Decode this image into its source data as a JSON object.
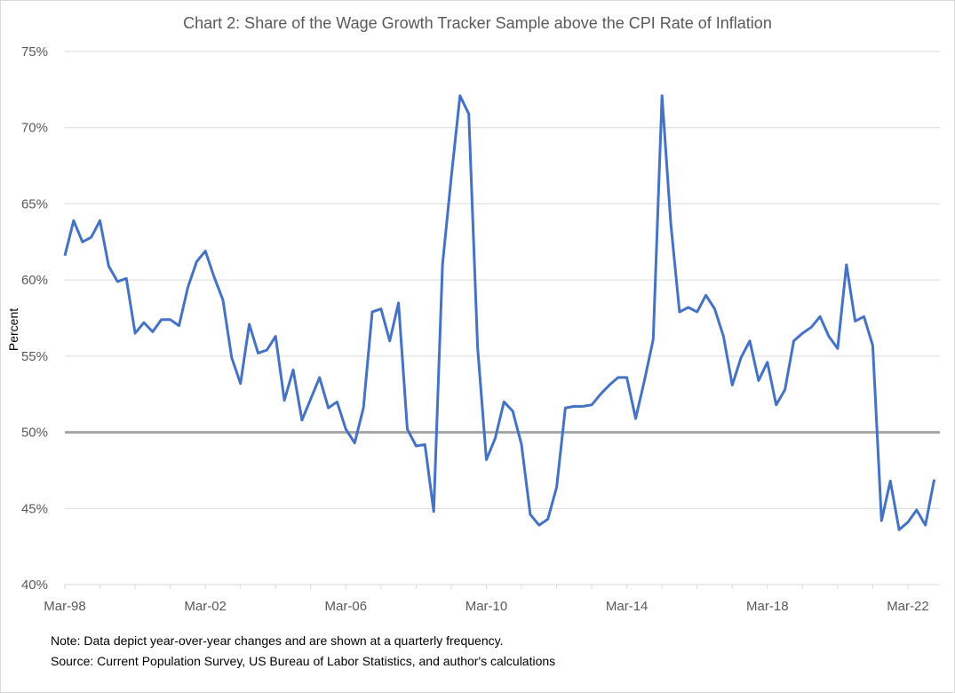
{
  "chart_data": {
    "type": "line",
    "title": "Chart 2: Share of the Wage Growth Tracker Sample above the CPI  Rate of Inflation",
    "xlabel": "",
    "ylabel": "Percent",
    "ylim": [
      40,
      75
    ],
    "y_ticks": [
      "40%",
      "45%",
      "50%",
      "55%",
      "60%",
      "65%",
      "70%",
      "75%"
    ],
    "x_ticks": [
      "Mar-98",
      "Mar-02",
      "Mar-06",
      "Mar-10",
      "Mar-14",
      "Mar-18",
      "Mar-22"
    ],
    "grid": "horizontal",
    "reference_line": {
      "value": 50,
      "color": "#A5A5A5"
    },
    "series_color": "#4472C4",
    "x": [
      "Mar-98",
      "Jun-98",
      "Sep-98",
      "Dec-98",
      "Mar-99",
      "Jun-99",
      "Sep-99",
      "Dec-99",
      "Mar-00",
      "Jun-00",
      "Sep-00",
      "Dec-00",
      "Mar-01",
      "Jun-01",
      "Sep-01",
      "Dec-01",
      "Mar-02",
      "Jun-02",
      "Sep-02",
      "Dec-02",
      "Mar-03",
      "Jun-03",
      "Sep-03",
      "Dec-03",
      "Mar-04",
      "Jun-04",
      "Sep-04",
      "Dec-04",
      "Mar-05",
      "Jun-05",
      "Sep-05",
      "Dec-05",
      "Mar-06",
      "Jun-06",
      "Sep-06",
      "Dec-06",
      "Mar-07",
      "Jun-07",
      "Sep-07",
      "Dec-07",
      "Mar-08",
      "Jun-08",
      "Sep-08",
      "Dec-08",
      "Mar-09",
      "Jun-09",
      "Sep-09",
      "Dec-09",
      "Mar-10",
      "Jun-10",
      "Sep-10",
      "Dec-10",
      "Mar-11",
      "Jun-11",
      "Sep-11",
      "Dec-11",
      "Mar-12",
      "Jun-12",
      "Sep-12",
      "Dec-12",
      "Mar-13",
      "Jun-13",
      "Sep-13",
      "Dec-13",
      "Mar-14",
      "Jun-14",
      "Sep-14",
      "Dec-14",
      "Mar-15",
      "Jun-15",
      "Sep-15",
      "Dec-15",
      "Mar-16",
      "Jun-16",
      "Sep-16",
      "Dec-16",
      "Mar-17",
      "Jun-17",
      "Sep-17",
      "Dec-17",
      "Mar-18",
      "Jun-18",
      "Sep-18",
      "Dec-18",
      "Mar-19",
      "Jun-19",
      "Sep-19",
      "Dec-19",
      "Mar-20",
      "Jun-20",
      "Sep-20",
      "Dec-20",
      "Mar-21",
      "Jun-21",
      "Sep-21",
      "Dec-21",
      "Mar-22",
      "Jun-22",
      "Sep-22",
      "Dec-22"
    ],
    "values": [
      61.6,
      63.9,
      62.5,
      62.8,
      63.9,
      60.9,
      59.9,
      60.1,
      56.5,
      57.2,
      56.6,
      57.4,
      57.4,
      57.0,
      59.5,
      61.2,
      61.9,
      60.2,
      58.7,
      54.9,
      53.2,
      57.1,
      55.2,
      55.4,
      56.3,
      52.1,
      54.1,
      50.8,
      52.2,
      53.6,
      51.6,
      52.0,
      50.2,
      49.3,
      51.6,
      57.9,
      58.1,
      56.0,
      58.5,
      50.2,
      49.1,
      49.2,
      44.8,
      61.0,
      66.7,
      72.1,
      70.9,
      55.6,
      48.2,
      49.6,
      52.0,
      51.4,
      49.2,
      44.6,
      43.9,
      44.3,
      46.4,
      51.6,
      51.7,
      51.7,
      51.8,
      52.5,
      53.1,
      53.6,
      53.6,
      50.9,
      53.4,
      56.1,
      72.1,
      63.7,
      57.9,
      58.2,
      57.9,
      59.0,
      58.1,
      56.3,
      53.1,
      54.9,
      56.0,
      53.4,
      54.6,
      51.8,
      52.8,
      56.0,
      56.5,
      56.9,
      57.6,
      56.3,
      55.5,
      61.0,
      57.3,
      57.6,
      55.7,
      44.2,
      46.8,
      43.6,
      44.1,
      44.9,
      43.9,
      46.9
    ]
  },
  "notes": {
    "note": "Note: Data depict year-over-year changes and are shown at a quarterly frequency.",
    "source": "Source: Current Population Survey, US Bureau of Labor Statistics, and author's calculations"
  }
}
